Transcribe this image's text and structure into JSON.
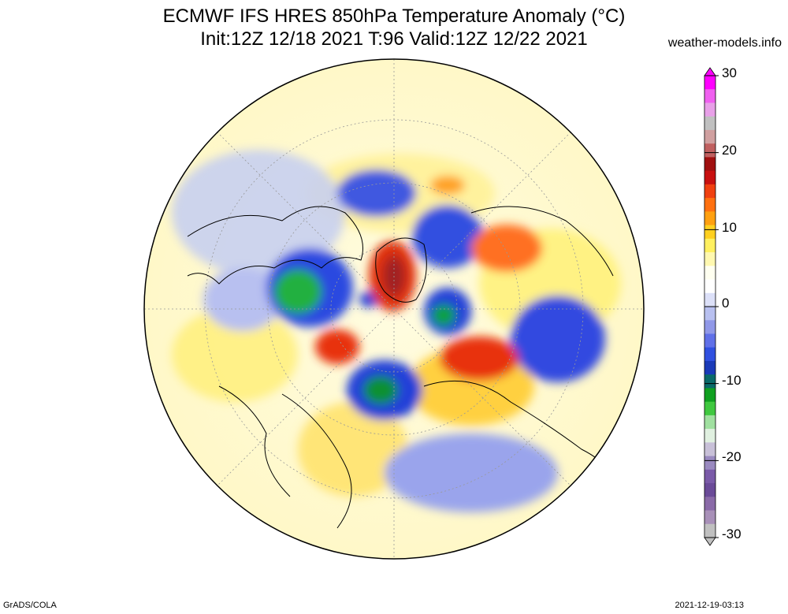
{
  "header": {
    "title_line1": "ECMWF IFS HRES 850hPa Temperature Anomaly (°C)",
    "title_line2": "Init:12Z 12/18 2021 T:96 Valid:12Z 12/22 2021",
    "credit": "weather-models.info"
  },
  "colorbar": {
    "tick_labels": [
      "30",
      "20",
      "10",
      "0",
      "-10",
      "-20",
      "-30"
    ],
    "colors": [
      "#c0c0c0",
      "#a890b8",
      "#8a6aa8",
      "#6a4a98",
      "#7a5aa8",
      "#9a8ac0",
      "#c8c0d8",
      "#e0f0e0",
      "#a0e0a0",
      "#40c840",
      "#10a020",
      "#0a6a6a",
      "#1a3ab8",
      "#3050e0",
      "#6070e8",
      "#9098e8",
      "#b8c0f0",
      "#dce0f8",
      "#ffffff",
      "#fffff0",
      "#fff8b0",
      "#fff060",
      "#ffd020",
      "#ffa010",
      "#ff7010",
      "#f04010",
      "#c81010",
      "#a01010",
      "#c06060",
      "#d0a0a0",
      "#c0c0c0",
      "#e8a0e8",
      "#f060f0",
      "#ff00ff"
    ],
    "colors_note_hidden": ""
  },
  "footer": {
    "left": "GrADS/COLA",
    "right": "2021-12-19-03:13"
  },
  "map_legend": {
    "projection": "north-polar-stereographic",
    "anomaly_blobs_note": ""
  }
}
